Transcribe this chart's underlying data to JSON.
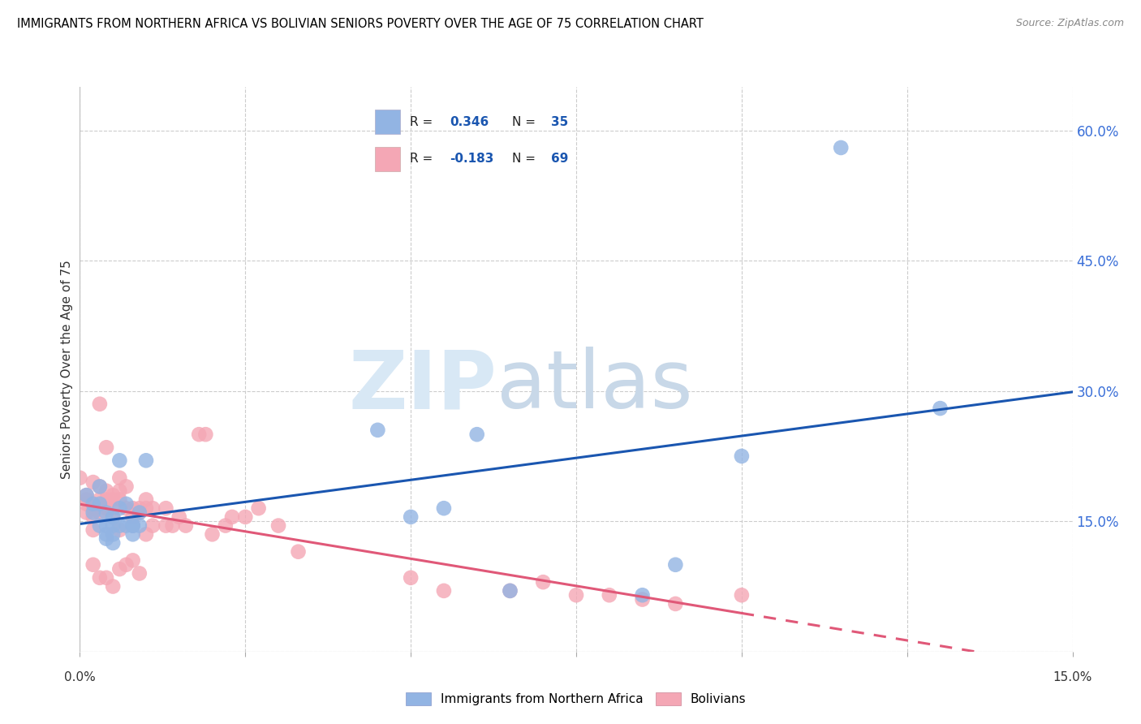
{
  "title": "IMMIGRANTS FROM NORTHERN AFRICA VS BOLIVIAN SENIORS POVERTY OVER THE AGE OF 75 CORRELATION CHART",
  "source": "Source: ZipAtlas.com",
  "ylabel": "Seniors Poverty Over the Age of 75",
  "xlim": [
    0,
    0.15
  ],
  "ylim": [
    0,
    0.65
  ],
  "right_yticks": [
    0.0,
    0.15,
    0.3,
    0.45,
    0.6
  ],
  "right_yticklabels": [
    "",
    "15.0%",
    "30.0%",
    "45.0%",
    "60.0%"
  ],
  "blue_R": 0.346,
  "blue_N": 35,
  "pink_R": -0.183,
  "pink_N": 69,
  "blue_color": "#92b4e3",
  "pink_color": "#f4a7b5",
  "blue_line_color": "#1a56b0",
  "pink_line_color": "#e05878",
  "watermark_zip": "ZIP",
  "watermark_atlas": "atlas",
  "legend_label_blue": "Immigrants from Northern Africa",
  "legend_label_pink": "Bolivians",
  "blue_scatter_x": [
    0.001,
    0.002,
    0.002,
    0.003,
    0.003,
    0.003,
    0.004,
    0.004,
    0.004,
    0.004,
    0.005,
    0.005,
    0.005,
    0.005,
    0.006,
    0.006,
    0.006,
    0.007,
    0.007,
    0.008,
    0.008,
    0.008,
    0.009,
    0.009,
    0.01,
    0.045,
    0.05,
    0.055,
    0.06,
    0.065,
    0.085,
    0.09,
    0.1,
    0.115,
    0.13
  ],
  "blue_scatter_y": [
    0.18,
    0.17,
    0.16,
    0.19,
    0.17,
    0.145,
    0.16,
    0.145,
    0.135,
    0.13,
    0.155,
    0.145,
    0.135,
    0.125,
    0.22,
    0.165,
    0.145,
    0.17,
    0.145,
    0.145,
    0.145,
    0.135,
    0.16,
    0.145,
    0.22,
    0.255,
    0.155,
    0.165,
    0.25,
    0.07,
    0.065,
    0.1,
    0.225,
    0.58,
    0.28
  ],
  "pink_scatter_x": [
    0.0,
    0.001,
    0.001,
    0.001,
    0.001,
    0.002,
    0.002,
    0.002,
    0.002,
    0.002,
    0.002,
    0.003,
    0.003,
    0.003,
    0.003,
    0.003,
    0.004,
    0.004,
    0.004,
    0.004,
    0.004,
    0.005,
    0.005,
    0.005,
    0.005,
    0.005,
    0.006,
    0.006,
    0.006,
    0.006,
    0.006,
    0.007,
    0.007,
    0.007,
    0.008,
    0.008,
    0.008,
    0.008,
    0.009,
    0.009,
    0.009,
    0.01,
    0.01,
    0.01,
    0.011,
    0.011,
    0.013,
    0.013,
    0.014,
    0.015,
    0.016,
    0.018,
    0.019,
    0.02,
    0.022,
    0.023,
    0.025,
    0.027,
    0.03,
    0.033,
    0.05,
    0.055,
    0.065,
    0.07,
    0.075,
    0.08,
    0.085,
    0.09,
    0.1
  ],
  "pink_scatter_y": [
    0.2,
    0.18,
    0.175,
    0.17,
    0.16,
    0.195,
    0.17,
    0.165,
    0.155,
    0.14,
    0.1,
    0.285,
    0.19,
    0.175,
    0.16,
    0.085,
    0.235,
    0.185,
    0.175,
    0.165,
    0.085,
    0.18,
    0.175,
    0.165,
    0.155,
    0.075,
    0.2,
    0.185,
    0.175,
    0.14,
    0.095,
    0.19,
    0.165,
    0.1,
    0.165,
    0.155,
    0.145,
    0.105,
    0.165,
    0.16,
    0.09,
    0.175,
    0.165,
    0.135,
    0.165,
    0.145,
    0.165,
    0.145,
    0.145,
    0.155,
    0.145,
    0.25,
    0.25,
    0.135,
    0.145,
    0.155,
    0.155,
    0.165,
    0.145,
    0.115,
    0.085,
    0.07,
    0.07,
    0.08,
    0.065,
    0.065,
    0.06,
    0.055,
    0.065
  ]
}
